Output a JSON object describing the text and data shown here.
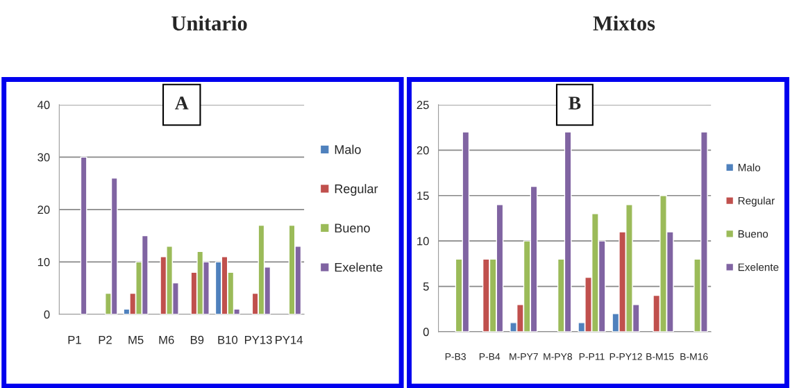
{
  "chart_data": [
    {
      "type": "bar",
      "title": "Unitario",
      "annotations": [
        "A"
      ],
      "categories": [
        "P1",
        "P2",
        "M5",
        "M6",
        "B9",
        "B10",
        "PY13",
        "PY14"
      ],
      "series": [
        {
          "name": "Malo",
          "color": "#4f81bd",
          "values": [
            null,
            null,
            1,
            null,
            null,
            10,
            null,
            null
          ]
        },
        {
          "name": "Regular",
          "color": "#c0504d",
          "values": [
            null,
            null,
            4,
            11,
            8,
            11,
            4,
            null
          ]
        },
        {
          "name": "Bueno",
          "color": "#9bbb59",
          "values": [
            null,
            4,
            10,
            13,
            12,
            8,
            17,
            17
          ]
        },
        {
          "name": "Exelente",
          "color": "#8064a2",
          "values": [
            30,
            26,
            15,
            6,
            10,
            1,
            9,
            13
          ]
        }
      ],
      "ylim": [
        0,
        40
      ],
      "yticks": [
        0,
        10,
        20,
        30,
        40
      ],
      "grid": "y",
      "legend": "right"
    },
    {
      "type": "bar",
      "title": "Mixtos",
      "annotations": [
        "B"
      ],
      "categories": [
        "P-B3",
        "P-B4",
        "M-PY7",
        "M-PY8",
        "P-P11",
        "P-PY12",
        "B-M15",
        "B-M16"
      ],
      "series": [
        {
          "name": "Malo",
          "color": "#4f81bd",
          "values": [
            null,
            null,
            1,
            null,
            1,
            2,
            null,
            null
          ]
        },
        {
          "name": "Regular",
          "color": "#c0504d",
          "values": [
            null,
            8,
            3,
            null,
            6,
            11,
            4,
            null
          ]
        },
        {
          "name": "Bueno",
          "color": "#9bbb59",
          "values": [
            8,
            8,
            10,
            8,
            13,
            14,
            15,
            8
          ]
        },
        {
          "name": "Exelente",
          "color": "#8064a2",
          "values": [
            22,
            14,
            16,
            22,
            10,
            3,
            11,
            22
          ]
        }
      ],
      "ylim": [
        0,
        25
      ],
      "yticks": [
        0,
        5,
        10,
        15,
        20,
        25
      ],
      "grid": "y",
      "legend": "right"
    }
  ]
}
